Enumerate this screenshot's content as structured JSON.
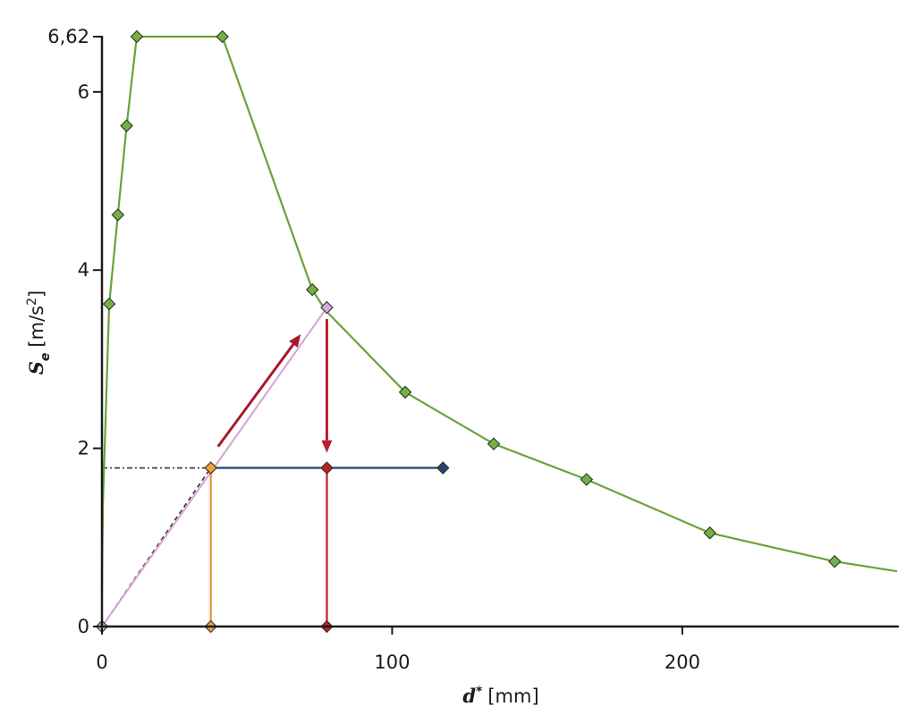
{
  "chart_data": {
    "type": "line",
    "xlabel": {
      "symbol": "d",
      "superscript": "*",
      "unit": "[mm]"
    },
    "ylabel": {
      "symbol": "S",
      "subscript": "e",
      "unit": "[m/s",
      "unit_sup": "2",
      "unit_end": "]"
    },
    "x_ticks": [
      0,
      100,
      200
    ],
    "y_ticks": [
      0,
      2,
      4,
      6,
      6.62
    ],
    "y_tick_labels": [
      "0",
      "2",
      "4",
      "6",
      "6,62"
    ],
    "xlim": [
      0,
      274
    ],
    "ylim": [
      0,
      6.62
    ],
    "grid": false,
    "series": [
      {
        "color": "#6aa23a",
        "marker": "diamond",
        "marker_fill": "#74b04a",
        "x": [
          0,
          0.3,
          2.5,
          5.5,
          8.5,
          12,
          41.5,
          72.5,
          77,
          104.5,
          135,
          167,
          209.5,
          252.5,
          274
        ],
        "y": [
          0.45,
          1.35,
          3.62,
          4.62,
          5.62,
          6.62,
          6.62,
          3.78,
          3.55,
          2.63,
          2.05,
          1.65,
          1.05,
          0.73,
          0.62
        ],
        "marked": [
          false,
          false,
          true,
          true,
          true,
          true,
          true,
          true,
          false,
          true,
          true,
          true,
          true,
          true,
          false
        ]
      },
      {
        "color": "#d9a8d8",
        "marker": "diamond",
        "marker_fill": "#d8a8e0",
        "x": [
          0,
          77.5
        ],
        "y": [
          0,
          3.58
        ],
        "marked": [
          true,
          true
        ]
      },
      {
        "color": "#2b3f7a",
        "marker": "diamond",
        "marker_fill": "#2b3f7a",
        "x": [
          37.5,
          117.5
        ],
        "y": [
          1.78,
          1.78
        ],
        "marked": [
          false,
          true
        ]
      },
      {
        "color": "#e8943a",
        "marker": "diamond",
        "marker_fill": "#f0a040",
        "x": [
          37.5,
          37.5
        ],
        "y": [
          0,
          1.78
        ],
        "marked": [
          true,
          true
        ]
      },
      {
        "color": "#c01e2e",
        "marker": "diamond",
        "marker_fill": "#c01e2e",
        "x": [
          77.5,
          77.5
        ],
        "y": [
          0,
          1.78
        ],
        "marked": [
          true,
          true
        ]
      }
    ],
    "dashed_lines": [
      {
        "color": "#333333",
        "x": [
          0,
          37.5
        ],
        "y": [
          1.78,
          1.78
        ],
        "style": "dash-dot"
      },
      {
        "color": "#333333",
        "x": [
          0,
          37.5
        ],
        "y": [
          0,
          1.78
        ],
        "style": "dash"
      }
    ],
    "arrows": [
      {
        "color": "#a8182a",
        "from": [
          40,
          2.02
        ],
        "to": [
          68.5,
          3.28
        ]
      },
      {
        "color": "#c01e2e",
        "from": [
          77.5,
          3.45
        ],
        "to": [
          77.5,
          1.95
        ]
      }
    ]
  }
}
